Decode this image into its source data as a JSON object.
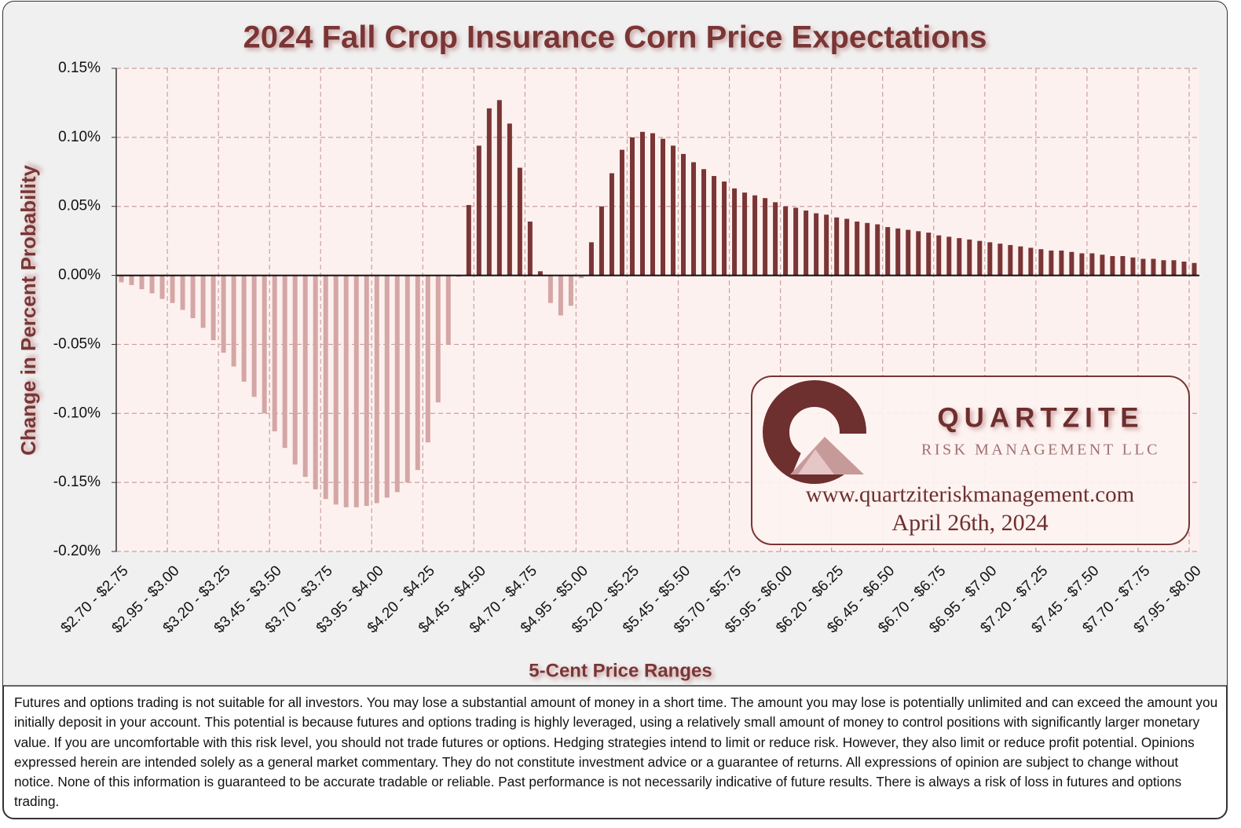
{
  "chart_data": {
    "type": "bar",
    "title": "2024 Fall Crop Insurance Corn Price Expectations",
    "x_label": "5-Cent Price Ranges",
    "y_label": "Change in Percent  Probability",
    "categories": [
      "$2.70 - $2.75",
      null,
      null,
      null,
      null,
      "$2.95 - $3.00",
      null,
      null,
      null,
      null,
      "$3.20 - $3.25",
      null,
      null,
      null,
      null,
      "$3.45 - $3.50",
      null,
      null,
      null,
      null,
      "$3.70 - $3.75",
      null,
      null,
      null,
      null,
      "$3.95 - $4.00",
      null,
      null,
      null,
      null,
      "$4.20 - $4.25",
      null,
      null,
      null,
      null,
      "$4.45 - $4.50",
      null,
      null,
      null,
      null,
      "$4.70 - $4.75",
      null,
      null,
      null,
      null,
      "$4.95 - $5.00",
      null,
      null,
      null,
      null,
      "$5.20 - $5.25",
      null,
      null,
      null,
      null,
      "$5.45 - $5.50",
      null,
      null,
      null,
      null,
      "$5.70 - $5.75",
      null,
      null,
      null,
      null,
      "$5.95 - $6.00",
      null,
      null,
      null,
      null,
      "$6.20 - $6.25",
      null,
      null,
      null,
      null,
      "$6.45 - $6.50",
      null,
      null,
      null,
      null,
      "$6.70 - $6.75",
      null,
      null,
      null,
      null,
      "$6.95 - $7.00",
      null,
      null,
      null,
      null,
      "$7.20 - $7.25",
      null,
      null,
      null,
      null,
      "$7.45 - $7.50",
      null,
      null,
      null,
      null,
      "$7.70 - $7.75",
      null,
      null,
      null,
      null,
      "$7.95 - $8.00"
    ],
    "values": [
      -0.005,
      -0.007,
      -0.01,
      -0.013,
      -0.017,
      -0.02,
      -0.025,
      -0.031,
      -0.038,
      -0.047,
      -0.056,
      -0.066,
      -0.077,
      -0.088,
      -0.1,
      -0.113,
      -0.125,
      -0.137,
      -0.146,
      -0.155,
      -0.162,
      -0.166,
      -0.168,
      -0.168,
      -0.167,
      -0.165,
      -0.161,
      -0.157,
      -0.15,
      -0.141,
      -0.121,
      -0.092,
      -0.05,
      -0.001,
      0.051,
      0.094,
      0.121,
      0.127,
      0.11,
      0.078,
      0.039,
      0.003,
      -0.02,
      -0.029,
      -0.022,
      -0.002,
      0.024,
      0.05,
      0.074,
      0.091,
      0.1,
      0.104,
      0.103,
      0.099,
      0.094,
      0.088,
      0.082,
      0.077,
      0.072,
      0.068,
      0.063,
      0.06,
      0.058,
      0.056,
      0.053,
      0.05,
      0.049,
      0.047,
      0.045,
      0.044,
      0.042,
      0.041,
      0.039,
      0.038,
      0.037,
      0.035,
      0.034,
      0.033,
      0.032,
      0.031,
      0.029,
      0.028,
      0.027,
      0.026,
      0.025,
      0.024,
      0.023,
      0.022,
      0.021,
      0.02,
      0.019,
      0.018,
      0.018,
      0.017,
      0.016,
      0.016,
      0.015,
      0.014,
      0.014,
      0.013,
      0.012,
      0.012,
      0.011,
      0.011,
      0.01,
      0.009
    ],
    "positive_color": "#7a3535",
    "negative_color": "#d4a6a6",
    "ylim": [
      -0.2,
      0.15
    ],
    "yticks": [
      {
        "value": -0.2,
        "label": "-0.20%"
      },
      {
        "value": -0.15,
        "label": "-0.15%"
      },
      {
        "value": -0.1,
        "label": "-0.10%"
      },
      {
        "value": -0.05,
        "label": "-0.05%"
      },
      {
        "value": 0,
        "label": "0.00%"
      },
      {
        "value": 0.05,
        "label": "0.05%"
      },
      {
        "value": 0.1,
        "label": "0.10%"
      },
      {
        "value": 0.15,
        "label": "0.15%"
      }
    ],
    "grid": true,
    "logo": {
      "name": "QUARTZITE",
      "subtitle": "RISK MANAGEMENT LLC",
      "url": "www.quartziteriskmanagement.com",
      "date": "April 26th, 2024"
    }
  },
  "disclaimer": "Futures and options trading is not suitable for all investors. You may lose a substantial amount of money in a short time. The amount you may lose is potentially unlimited and can exceed the amount you initially deposit in your account. This potential is because futures and options trading is highly leveraged, using a relatively small amount of money to control positions with significantly larger monetary value. If you are uncomfortable with this risk level, you should not trade futures or options. Hedging strategies intend to limit or reduce risk. However, they also limit or reduce profit potential. Opinions expressed herein are intended solely as a general market commentary. They do not constitute investment advice or a guarantee of returns. All expressions of opinion are subject to change without notice. None of this information is guaranteed to be accurate tradable or reliable. Past performance is not necessarily indicative of future results. There is always a risk of loss in futures and options trading."
}
